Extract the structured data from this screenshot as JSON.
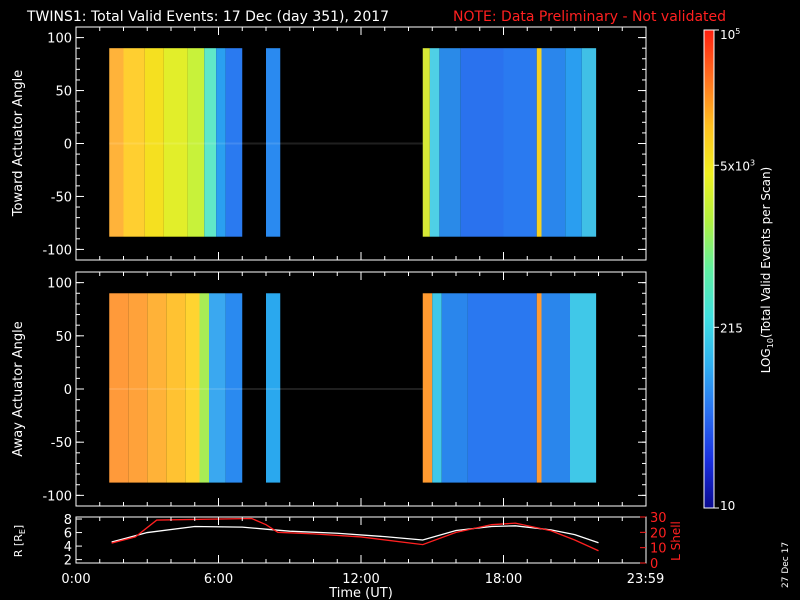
{
  "title": "TWINS1: Total Valid Events: 17 Dec (day 351), 2017",
  "note": "NOTE: Data Preliminary - Not validated",
  "date_stamp": "27 Dec 17",
  "colors": {
    "background": "#000000",
    "axis": "#ffffff",
    "note": "#ff2020",
    "r_line": "#ffffff",
    "lshell_line": "#ff2020"
  },
  "chart_data": [
    {
      "type": "heatmap",
      "panel": "toward",
      "ylabel": "Toward Actuator Angle",
      "ylim": [
        -110,
        110
      ],
      "yticks": [
        "100",
        "50",
        "0",
        "-50",
        "-100"
      ],
      "xlim_hours": [
        0,
        24
      ],
      "data_angle_range": [
        -88,
        90
      ],
      "columns": [
        {
          "start": 1.4,
          "end": 2.0,
          "color": "#ffb33a"
        },
        {
          "start": 2.0,
          "end": 2.9,
          "color": "#ffcf30"
        },
        {
          "start": 2.9,
          "end": 3.7,
          "color": "#f5e020"
        },
        {
          "start": 3.7,
          "end": 4.7,
          "color": "#e2ee2a"
        },
        {
          "start": 4.7,
          "end": 5.4,
          "color": "#c8f23a"
        },
        {
          "start": 5.4,
          "end": 5.9,
          "color": "#60e8c8"
        },
        {
          "start": 5.9,
          "end": 6.3,
          "color": "#2aa0f0"
        },
        {
          "start": 6.3,
          "end": 7.0,
          "color": "#2a7af0"
        },
        {
          "start": 8.0,
          "end": 8.6,
          "color": "#2a8af0"
        },
        {
          "start": 14.6,
          "end": 14.9,
          "color": "#d6e836"
        },
        {
          "start": 14.9,
          "end": 15.3,
          "color": "#4fd0e6"
        },
        {
          "start": 15.3,
          "end": 16.2,
          "color": "#2a8ae8"
        },
        {
          "start": 16.2,
          "end": 18.0,
          "color": "#2a72ee"
        },
        {
          "start": 18.0,
          "end": 19.4,
          "color": "#2a7af0"
        },
        {
          "start": 19.4,
          "end": 19.6,
          "color": "#f5d020"
        },
        {
          "start": 19.6,
          "end": 20.6,
          "color": "#2a86ec"
        },
        {
          "start": 20.6,
          "end": 21.3,
          "color": "#2a9ef0"
        },
        {
          "start": 21.3,
          "end": 21.9,
          "color": "#40c0e6"
        }
      ]
    },
    {
      "type": "heatmap",
      "panel": "away",
      "ylabel": "Away Actuator Angle",
      "ylim": [
        -110,
        110
      ],
      "yticks": [
        "100",
        "50",
        "0",
        "-50",
        "-100"
      ],
      "xlim_hours": [
        0,
        24
      ],
      "data_angle_range": [
        -88,
        90
      ],
      "columns": [
        {
          "start": 1.4,
          "end": 2.2,
          "color": "#ff9a3a"
        },
        {
          "start": 2.2,
          "end": 3.0,
          "color": "#ffa23a"
        },
        {
          "start": 3.0,
          "end": 3.8,
          "color": "#ffb238"
        },
        {
          "start": 3.8,
          "end": 4.6,
          "color": "#ffc232"
        },
        {
          "start": 4.6,
          "end": 5.2,
          "color": "#ffd430"
        },
        {
          "start": 5.2,
          "end": 5.6,
          "color": "#a8ec56"
        },
        {
          "start": 5.6,
          "end": 6.3,
          "color": "#3aa8f0"
        },
        {
          "start": 6.3,
          "end": 7.0,
          "color": "#2a8af0"
        },
        {
          "start": 8.0,
          "end": 8.6,
          "color": "#2aa8ee"
        },
        {
          "start": 14.6,
          "end": 15.0,
          "color": "#ff9a30"
        },
        {
          "start": 15.0,
          "end": 15.4,
          "color": "#40c8e8"
        },
        {
          "start": 15.4,
          "end": 16.5,
          "color": "#2a86ec"
        },
        {
          "start": 16.5,
          "end": 19.4,
          "color": "#2a78f0"
        },
        {
          "start": 19.4,
          "end": 19.6,
          "color": "#ff9a30"
        },
        {
          "start": 19.6,
          "end": 20.8,
          "color": "#2a86ec"
        },
        {
          "start": 20.8,
          "end": 21.9,
          "color": "#40c8e8"
        }
      ]
    },
    {
      "type": "line",
      "panel": "orbit",
      "xlabel": "Time (UT)",
      "xticks": [
        "0:00",
        "6:00",
        "12:00",
        "18:00",
        "23:59"
      ],
      "xtick_hours": [
        0,
        6,
        12,
        18,
        23.98
      ],
      "xlim_hours": [
        0,
        24
      ],
      "left_axis": {
        "label": "R [RE]",
        "label_main": "R [R",
        "label_sub": "E",
        "label_end": "]",
        "ylim": [
          1.5,
          8.3
        ],
        "ticks": [
          "8",
          "6",
          "4",
          "2"
        ]
      },
      "right_axis": {
        "label": "L Shell",
        "ylim": [
          0,
          30
        ],
        "ticks": [
          "30",
          "20",
          "10",
          "0"
        ]
      },
      "series": [
        {
          "axis": "left",
          "x": [
            1.5,
            3,
            5,
            7,
            8,
            9,
            11,
            13,
            14.6,
            16,
            17.5,
            18.5,
            20,
            21,
            22
          ],
          "y": [
            4.6,
            6.0,
            6.9,
            6.8,
            6.5,
            6.2,
            5.9,
            5.4,
            4.9,
            6.3,
            6.9,
            7.0,
            6.4,
            5.7,
            4.5
          ]
        },
        {
          "axis": "right",
          "x": [
            1.5,
            2.5,
            3.4,
            7.4,
            8.0,
            8.5,
            10,
            12,
            14.6,
            16,
            17.5,
            18.5,
            20,
            21,
            22
          ],
          "y": [
            13,
            17,
            28,
            29,
            25,
            20,
            19,
            17,
            12,
            20,
            25,
            26,
            21,
            15,
            8
          ]
        }
      ]
    }
  ],
  "colorbar": {
    "label_main": "LOG",
    "label_sub": "10",
    "label_rest": "(Total Valid Events per Scan)",
    "tick_labels": [
      {
        "pos": 0.0,
        "main": "10",
        "sup": ""
      },
      {
        "pos": 0.378,
        "main": "215",
        "sup": ""
      },
      {
        "pos": 0.717,
        "main": "5x10",
        "sup": "3"
      },
      {
        "pos": 1.0,
        "main": "10",
        "sup": "5"
      }
    ],
    "stops": [
      "#0a0a90",
      "#1a30e0",
      "#2a70f0",
      "#30b0f0",
      "#40e0e0",
      "#60f0a0",
      "#b0f040",
      "#f0f020",
      "#ffc020",
      "#ff7020",
      "#ff2010"
    ]
  }
}
